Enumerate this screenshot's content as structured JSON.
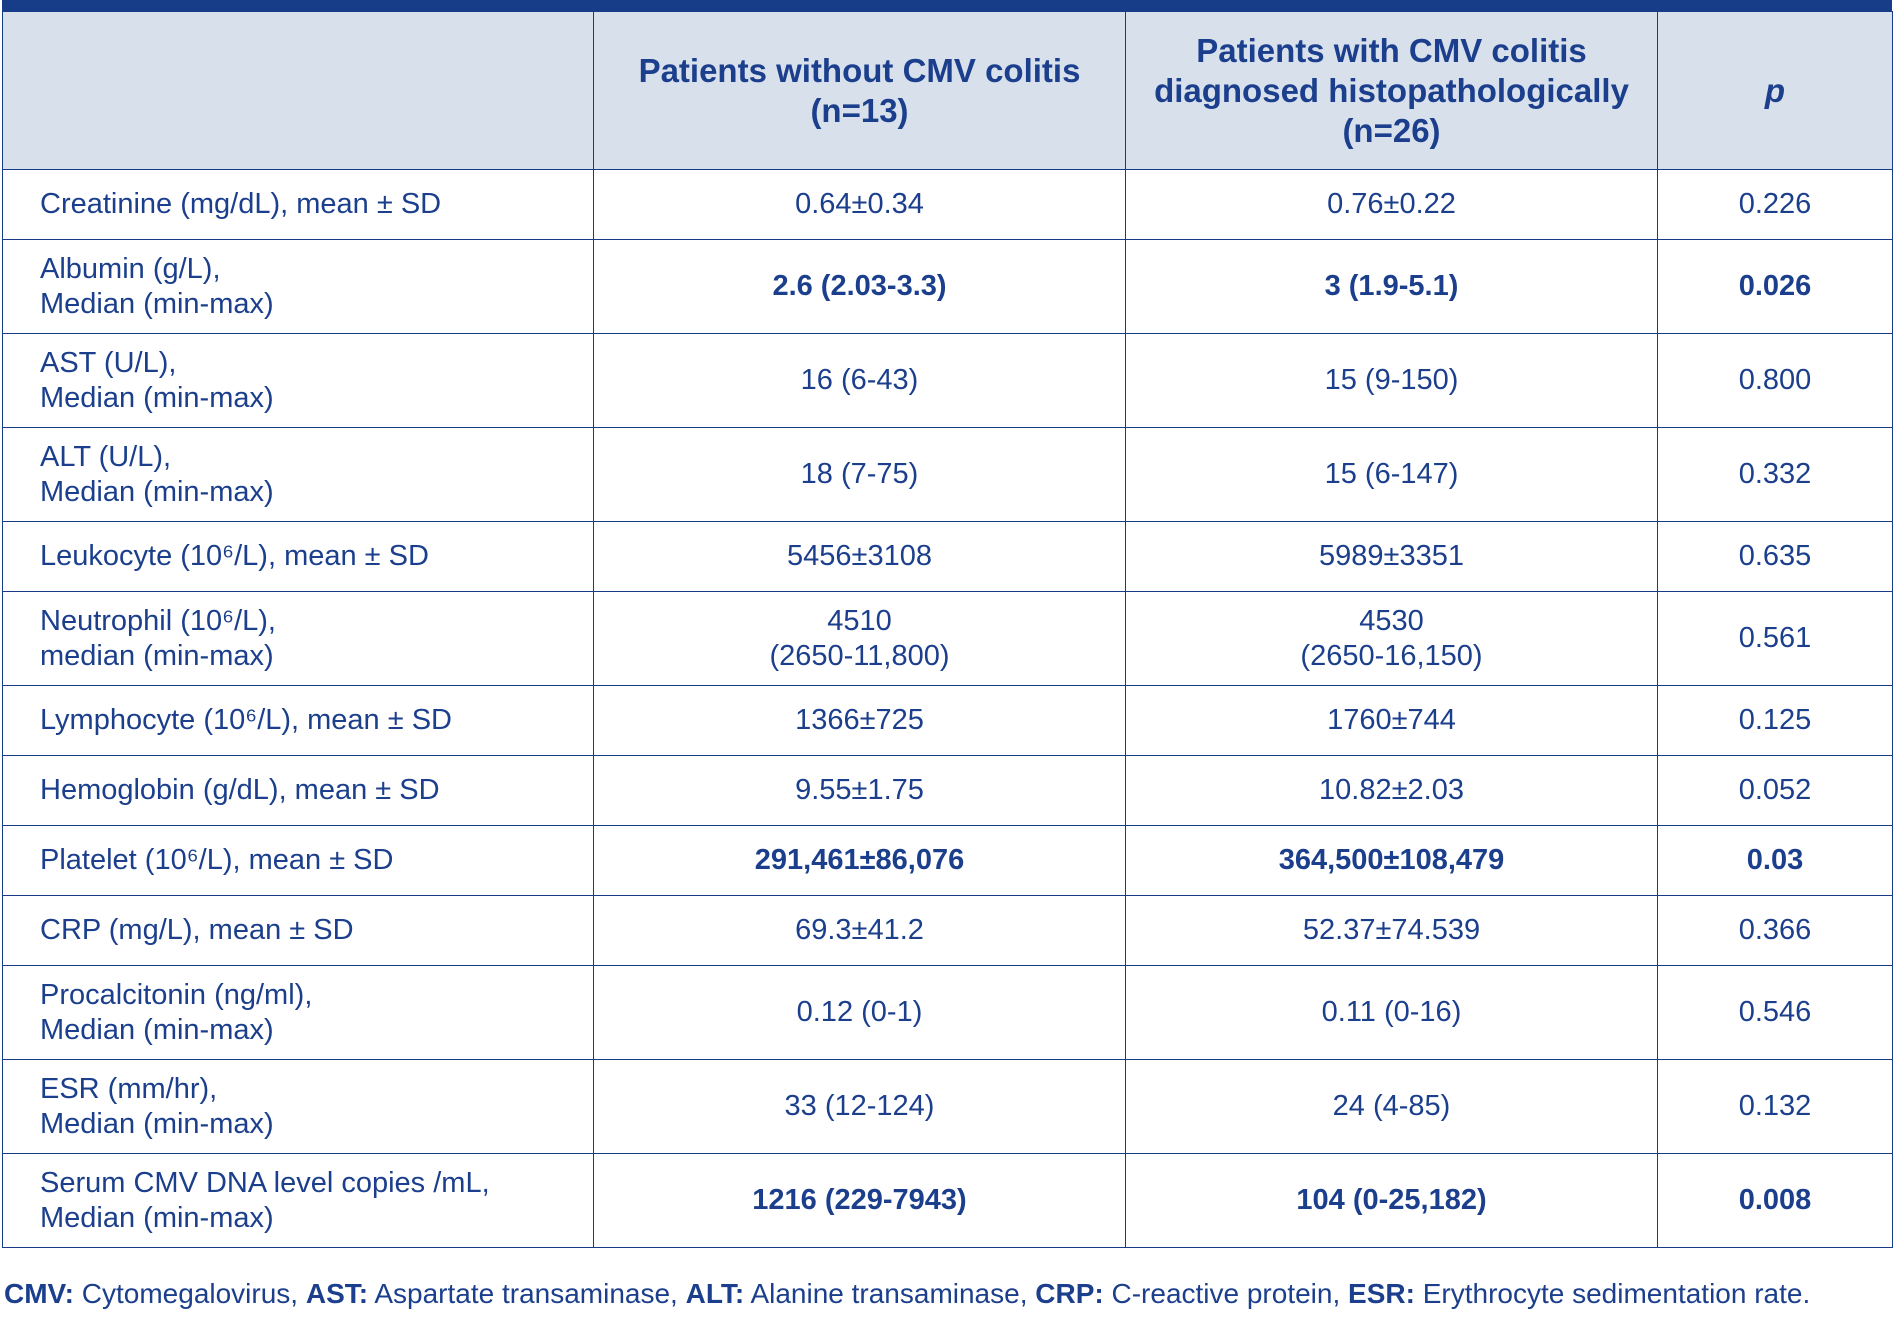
{
  "header": {
    "col0": "",
    "col1_line1": "Patients without CMV colitis",
    "col1_line2": "(n=13)",
    "col2_line1": "Patients with CMV colitis",
    "col2_line2": "diagnosed histopathologically",
    "col2_line3": "(n=26)",
    "col3": "p"
  },
  "rows": [
    {
      "label1": "Creatinine (mg/dL), mean ± SD",
      "label2": "",
      "v1a": "0.64±0.34",
      "v1b": "",
      "v2a": "0.76±0.22",
      "v2b": "",
      "p": "0.226"
    },
    {
      "label1": "Albumin (g/L),",
      "label2": "Median (min-max)",
      "v1a": "2.6 (2.03-3.3)",
      "v1b": "",
      "v2a": "3 (1.9-5.1)",
      "v2b": "",
      "p": "0.026"
    },
    {
      "label1": "AST (U/L),",
      "label2": "Median (min-max)",
      "v1a": "16 (6-43)",
      "v1b": "",
      "v2a": "15 (9-150)",
      "v2b": "",
      "p": "0.800"
    },
    {
      "label1": "ALT (U/L),",
      "label2": "Median (min-max)",
      "v1a": "18 (7-75)",
      "v1b": "",
      "v2a": "15 (6-147)",
      "v2b": "",
      "p": "0.332"
    },
    {
      "label1": "Leukocyte (10⁶/L), mean ± SD",
      "label2": "",
      "v1a": "5456±3108",
      "v1b": "",
      "v2a": "5989±3351",
      "v2b": "",
      "p": "0.635"
    },
    {
      "label1": "Neutrophil (10⁶/L),",
      "label2": "median (min-max)",
      "v1a": "4510",
      "v1b": "(2650-11,800)",
      "v2a": "4530",
      "v2b": "(2650-16,150)",
      "p": "0.561"
    },
    {
      "label1": "Lymphocyte (10⁶/L), mean ± SD",
      "label2": "",
      "v1a": "1366±725",
      "v1b": "",
      "v2a": "1760±744",
      "v2b": "",
      "p": "0.125"
    },
    {
      "label1": "Hemoglobin (g/dL), mean ± SD",
      "label2": "",
      "v1a": "9.55±1.75",
      "v1b": "",
      "v2a": "10.82±2.03",
      "v2b": "",
      "p": "0.052"
    },
    {
      "label1": "Platelet (10⁶/L), mean ± SD",
      "label2": "",
      "v1a": "291,461±86,076",
      "v1b": "",
      "v2a": "364,500±108,479",
      "v2b": "",
      "p": "0.03"
    },
    {
      "label1": "CRP (mg/L), mean ± SD",
      "label2": "",
      "v1a": "69.3±41.2",
      "v1b": "",
      "v2a": "52.37±74.539",
      "v2b": "",
      "p": "0.366"
    },
    {
      "label1": "Procalcitonin (ng/ml),",
      "label2": "Median (min-max)",
      "v1a": "0.12 (0-1)",
      "v1b": "",
      "v2a": "0.11 (0-16)",
      "v2b": "",
      "p": "0.546"
    },
    {
      "label1": "ESR (mm/hr),",
      "label2": "Median (min-max)",
      "v1a": "33 (12-124)",
      "v1b": "",
      "v2a": "24 (4-85)",
      "v2b": "",
      "p": "0.132"
    },
    {
      "label1": "Serum CMV DNA level copies /mL,",
      "label2": "Median (min-max)",
      "v1a": "1216 (229-7943)",
      "v1b": "",
      "v2a": "104 (0-25,182)",
      "v2b": "",
      "p": "0.008"
    }
  ],
  "footnote": {
    "t1": "CMV:",
    "d1": " Cytomegalovirus, ",
    "t2": "AST:",
    "d2": " Aspartate transaminase, ",
    "t3": "ALT:",
    "d3": " Alanine transaminase, ",
    "t4": "CRP:",
    "d4": " C-reactive protein, ",
    "t5": "ESR:",
    "d5": " Erythrocyte sedimentation rate."
  }
}
